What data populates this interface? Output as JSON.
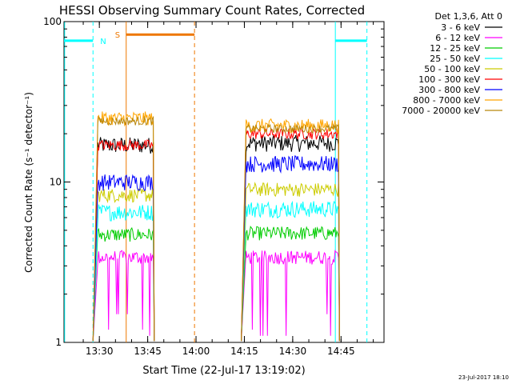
{
  "chart_data": {
    "type": "line",
    "title": "HESSI Observing Summary Count Rates, Corrected",
    "xlabel": "Start Time (22-Jul-17 13:19:02)",
    "ylabel": "Corrected Count Rate (s⁻¹ detector⁻¹)",
    "x_unit": "minutes after 13:19:02 on 22-Jul-2017",
    "xlim": [
      0,
      99.3
    ],
    "ylim": [
      1,
      100
    ],
    "yscale": "log",
    "x_ticks": [
      {
        "value": 10.97,
        "label": "13:30"
      },
      {
        "value": 25.97,
        "label": "13:45"
      },
      {
        "value": 40.97,
        "label": "14:00"
      },
      {
        "value": 55.97,
        "label": "14:15"
      },
      {
        "value": 70.97,
        "label": "14:30"
      },
      {
        "value": 85.97,
        "label": "14:45"
      }
    ],
    "y_ticks": [
      {
        "value": 1,
        "label": "1"
      },
      {
        "value": 10,
        "label": "10"
      },
      {
        "value": 100,
        "label": "100"
      }
    ],
    "legend_position": "right",
    "legend_title": "Det 1,3,6, Att 0",
    "intervals": [
      {
        "x_start": 9.0,
        "x_end": 28.0
      },
      {
        "x_start": 55.0,
        "x_end": 85.5
      }
    ],
    "series": [
      {
        "name": "3 - 6 keV",
        "color": "#000000",
        "level": 17.0,
        "spread": 0.12,
        "spikes": [],
        "level2": 17.5
      },
      {
        "name": "6 - 12 keV",
        "color": "#ff00ff",
        "level": 3.4,
        "spread": 0.1,
        "spikes": [
          1.2,
          1.5,
          1.1
        ],
        "level2": 3.4
      },
      {
        "name": "12 - 25 keV",
        "color": "#00cc00",
        "level": 4.7,
        "spread": 0.1,
        "spikes": [],
        "level2": 4.8
      },
      {
        "name": "25 - 50 keV",
        "color": "#00ffff",
        "level": 6.5,
        "spread": 0.12,
        "spikes": [],
        "level2": 6.8
      },
      {
        "name": "50 - 100 keV",
        "color": "#cccc00",
        "level": 8.3,
        "spread": 0.1,
        "spikes": [],
        "level2": 9.0
      },
      {
        "name": "100 - 300 keV",
        "color": "#ff0000",
        "level": 17.0,
        "spread": 0.08,
        "spikes": [],
        "level2": 20.0
      },
      {
        "name": "300 - 800 keV",
        "color": "#0000ff",
        "level": 10.0,
        "spread": 0.12,
        "spikes": [],
        "level2": 13.0
      },
      {
        "name": "800 - 7000 keV",
        "color": "#ffa500",
        "level": 25.0,
        "spread": 0.1,
        "spikes": [],
        "level2": 22.5
      },
      {
        "name": "7000 - 20000 keV",
        "color": "#b8860b",
        "level": 24.0,
        "spread": 0.06,
        "spikes": [],
        "level2": 21.5
      }
    ],
    "markers": {
      "night": {
        "label": "N",
        "color": "#00ffff",
        "level": 76,
        "spans": [
          [
            0,
            9.0
          ],
          [
            84.2,
            94.0
          ]
        ],
        "solid_lines": [
          0.2,
          84.2
        ],
        "dashed_lines": [
          9.0,
          94.0
        ]
      },
      "saa": {
        "label": "S",
        "color": "#ee7700",
        "level": 83,
        "spans": [
          [
            19.3,
            40.5
          ]
        ],
        "solid_lines": [
          19.3
        ],
        "dashed_lines": [
          40.5
        ]
      }
    },
    "timestamp": "23-Jul-2017 18:10"
  }
}
